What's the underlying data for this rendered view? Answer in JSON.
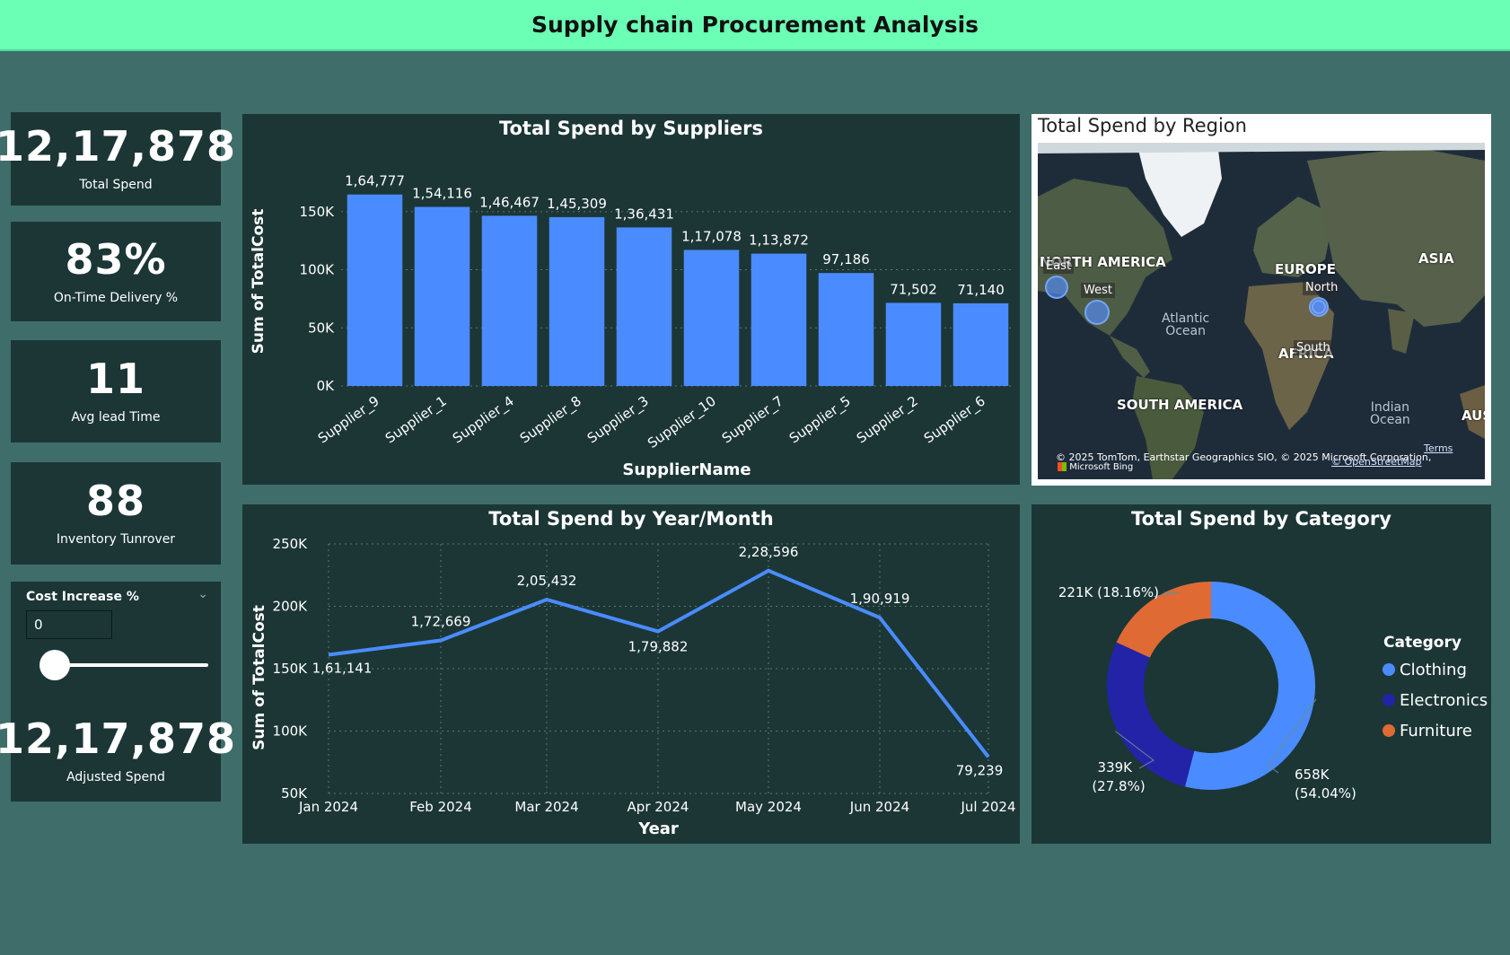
{
  "header": {
    "title": "Supply chain Procurement Analysis"
  },
  "kpis": [
    {
      "value": "12,17,878",
      "label": "Total Spend"
    },
    {
      "value": "83%",
      "label": "On-Time Delivery %"
    },
    {
      "value": "11",
      "label": "Avg lead Time"
    },
    {
      "value": "88",
      "label": "Inventory Tunrover"
    }
  ],
  "slicer": {
    "title": "Cost Increase %",
    "value": "0",
    "slider_fraction": 0
  },
  "adjusted": {
    "value": "12,17,878",
    "label": "Adjusted Spend"
  },
  "colors": {
    "bar": "#4a8cff",
    "line": "#4a8cff",
    "clothing": "#4a8cff",
    "electronics": "#2323a8",
    "furniture": "#e06a34",
    "bg": "#3f6d6a",
    "card": "#1c3636",
    "header": "#6affb5"
  },
  "chart_data": [
    {
      "type": "bar",
      "title": "Total Spend by Suppliers",
      "xlabel": "SupplierName",
      "ylabel": "Sum of TotalCost",
      "categories": [
        "Supplier_9",
        "Supplier_1",
        "Supplier_4",
        "Supplier_8",
        "Supplier_3",
        "Supplier_10",
        "Supplier_7",
        "Supplier_5",
        "Supplier_2",
        "Supplier_6"
      ],
      "values": [
        164777,
        154116,
        146467,
        145309,
        136431,
        117078,
        113872,
        97186,
        71502,
        71140
      ],
      "data_labels": [
        "1,64,777",
        "1,54,116",
        "1,46,467",
        "1,45,309",
        "1,36,431",
        "1,17,078",
        "1,13,872",
        "97,186",
        "71,502",
        "71,140"
      ],
      "yticks": [
        0,
        50000,
        100000,
        150000
      ],
      "ytick_labels": [
        "0K",
        "50K",
        "100K",
        "150K"
      ],
      "ylim": [
        0,
        180000
      ],
      "grid": true
    },
    {
      "type": "line",
      "title": "Total Spend by Year/Month",
      "xlabel": "Year",
      "ylabel": "Sum of TotalCost",
      "categories": [
        "Jan 2024",
        "Feb 2024",
        "Mar 2024",
        "Apr 2024",
        "May 2024",
        "Jun 2024",
        "Jul 2024"
      ],
      "values": [
        161141,
        172669,
        205432,
        179882,
        228596,
        190919,
        79239
      ],
      "data_labels": [
        "1,61,141",
        "1,72,669",
        "2,05,432",
        "1,79,882",
        "2,28,596",
        "1,90,919",
        "79,239"
      ],
      "yticks": [
        50000,
        100000,
        150000,
        200000,
        250000
      ],
      "ytick_labels": [
        "50K",
        "100K",
        "150K",
        "200K",
        "250K"
      ],
      "ylim": [
        50000,
        250000
      ],
      "grid": true
    },
    {
      "type": "pie",
      "title": "Total Spend by Category",
      "legend_title": "Category",
      "legend_position": "right",
      "categories": [
        "Clothing",
        "Electronics",
        "Furniture"
      ],
      "values": [
        658000,
        339000,
        221000
      ],
      "percent": [
        54.04,
        27.8,
        18.16
      ],
      "data_labels": [
        [
          "658K",
          "(54.04%)"
        ],
        [
          "339K",
          "(27.8%)"
        ],
        [
          "221K (18.16%)"
        ]
      ]
    }
  ],
  "map": {
    "title": "Total Spend by Region",
    "continents": [
      "NORTH AMERICA",
      "EUROPE",
      "ASIA",
      "AFRICA",
      "SOUTH AMERICA",
      "AUS"
    ],
    "oceans": [
      [
        "Atlantic",
        "Ocean"
      ],
      [
        "Indian",
        "Ocean"
      ]
    ],
    "regions": [
      "East",
      "West",
      "North",
      "South"
    ],
    "attribution": "© 2025 TomTom, Earthstar Geographics SIO, © 2025 Microsoft Corporation,",
    "terms": "Terms",
    "osm": "© OpenStreetMap",
    "brand": "Microsoft Bing"
  }
}
